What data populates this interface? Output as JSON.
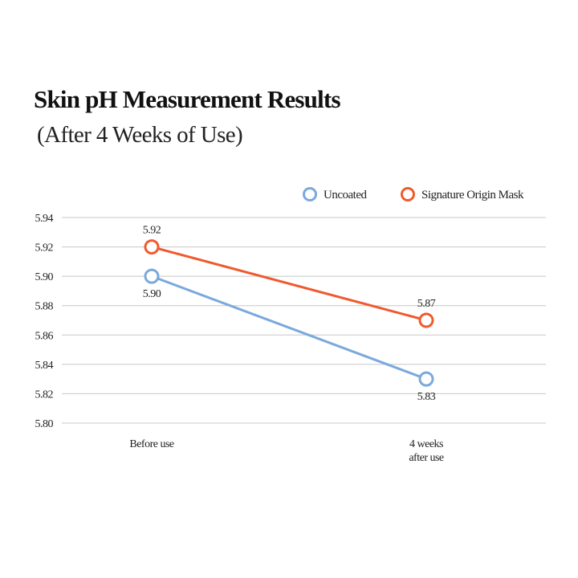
{
  "chart_data": {
    "type": "line",
    "title": "Skin pH Measurement Results",
    "subtitle": "(After 4 Weeks of Use)",
    "categories": [
      "Before use",
      "4 weeks after use"
    ],
    "category_lines": [
      [
        "Before use"
      ],
      [
        "4 weeks",
        "after use"
      ]
    ],
    "ylim": [
      5.8,
      5.94
    ],
    "yticks": [
      "5.94",
      "5.92",
      "5.90",
      "5.88",
      "5.86",
      "5.84",
      "5.82",
      "5.80"
    ],
    "grid": true,
    "legend_position": "top-right",
    "series": [
      {
        "name": "Uncoated",
        "values": [
          5.9,
          5.83
        ],
        "labels": [
          "5.90",
          "5.83"
        ],
        "color": "#7aa9dc",
        "label_side": "below"
      },
      {
        "name": "Signature Origin Mask",
        "values": [
          5.92,
          5.87
        ],
        "labels": [
          "5.92",
          "5.87"
        ],
        "color": "#ef5a2f",
        "label_side": "above"
      }
    ]
  }
}
